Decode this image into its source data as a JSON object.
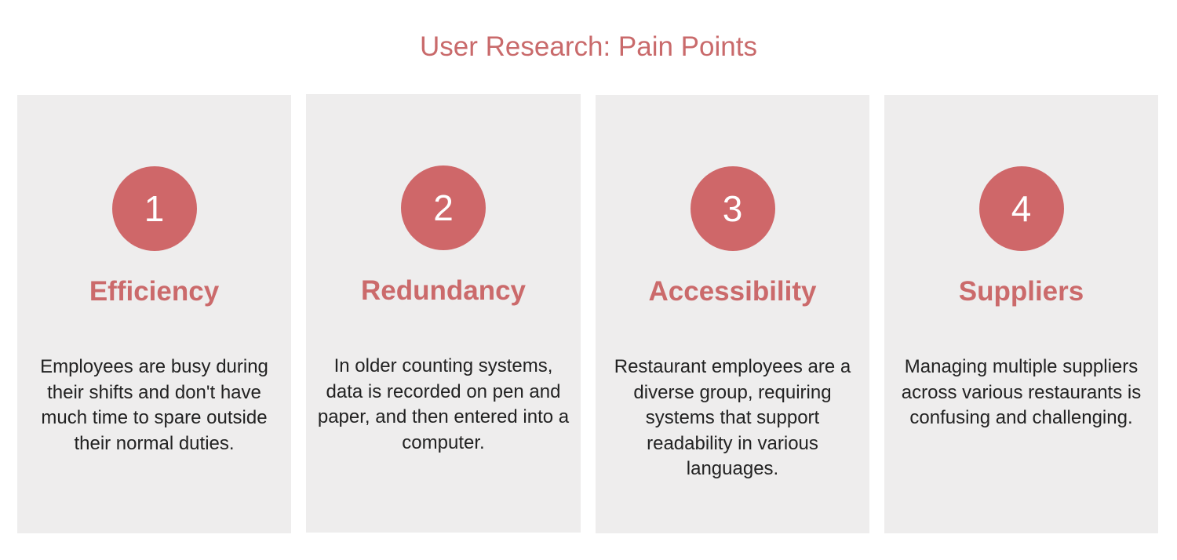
{
  "title": "User Research: Pain Points",
  "colors": {
    "accent": "#cf6769",
    "card_background": "#eeeded",
    "body_text": "#222222"
  },
  "cards": [
    {
      "number": "1",
      "heading": "Efficiency",
      "description": "Employees are busy during their shifts and don't have much time to spare outside their normal duties."
    },
    {
      "number": "2",
      "heading": "Redundancy",
      "description": "In older counting systems, data is recorded on pen and paper, and then entered into a computer."
    },
    {
      "number": "3",
      "heading": "Accessibility",
      "description": "Restaurant employees are a diverse group, requiring systems that support readability in various languages."
    },
    {
      "number": "4",
      "heading": "Suppliers",
      "description": "Managing multiple suppliers across various restaurants is confusing and challenging."
    }
  ]
}
